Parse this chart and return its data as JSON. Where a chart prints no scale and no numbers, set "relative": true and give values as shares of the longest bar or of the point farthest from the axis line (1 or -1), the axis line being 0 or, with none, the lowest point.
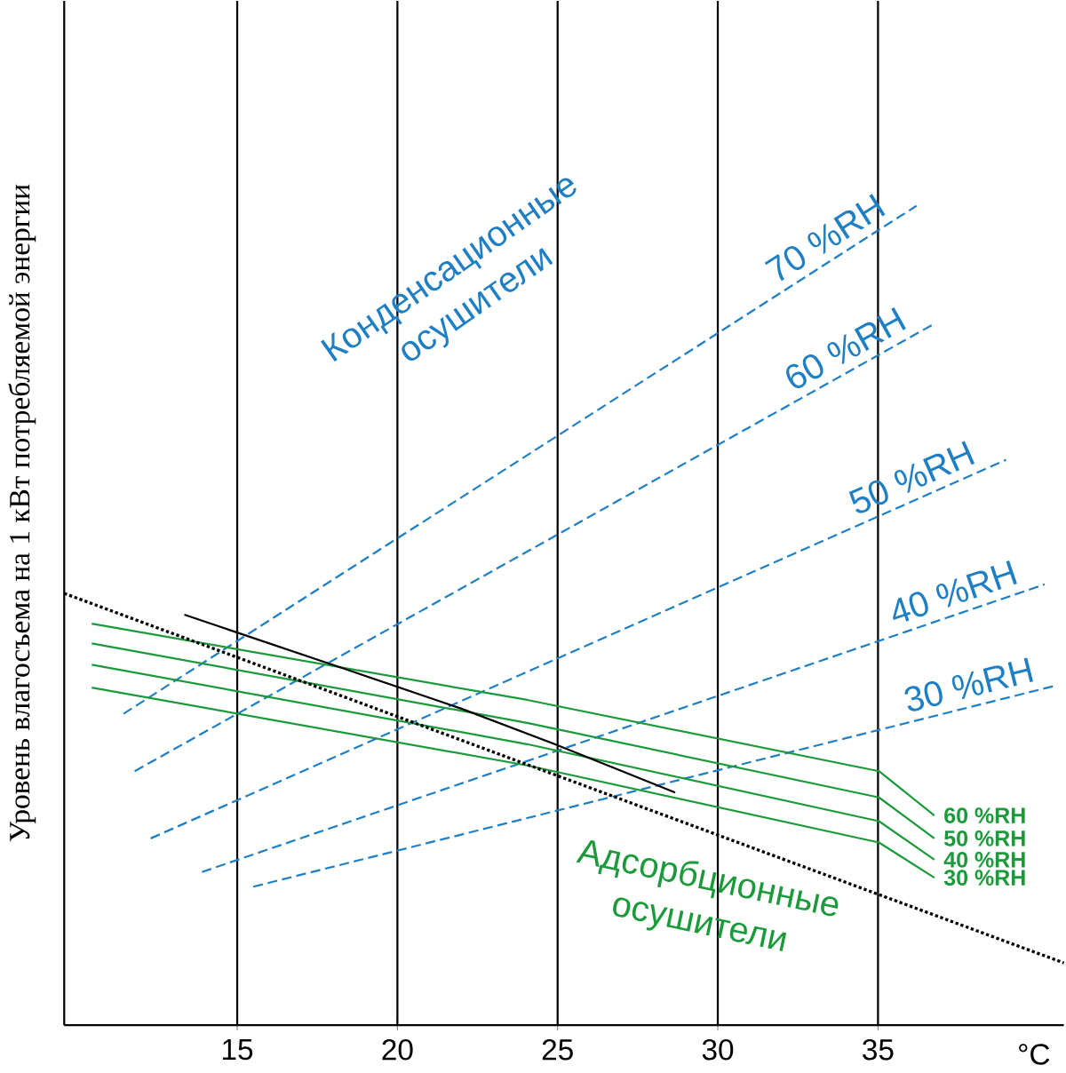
{
  "chart_data": {
    "type": "line",
    "relative": true,
    "xlabel": "°C",
    "ylabel": "Уровень влагосъема на 1 кВт потребляемой энергии",
    "xlim": [
      9.6,
      40.8
    ],
    "xticks": [
      15,
      20,
      25,
      30,
      35
    ],
    "grid": "x",
    "marker": "none",
    "annotations": [
      "Конденсационные осушители",
      "Адсорбционные осушители"
    ],
    "series": [
      {
        "name": "70 %RH",
        "color": "#1f7fc4",
        "line_style": "dashed",
        "x": [
          11.45,
          36.2
        ],
        "values": [
          0.38,
          1.0
        ]
      },
      {
        "name": "60 %RH",
        "color": "#1f7fc4",
        "line_style": "dashed",
        "x": [
          11.8,
          36.8
        ],
        "values": [
          0.31,
          0.857
        ]
      },
      {
        "name": "50 %RH",
        "color": "#1f7fc4",
        "line_style": "dashed",
        "x": [
          12.3,
          39.0
        ],
        "values": [
          0.228,
          0.69
        ]
      },
      {
        "name": "40 %RH",
        "color": "#1f7fc4",
        "line_style": "dashed",
        "x": [
          13.9,
          40.2
        ],
        "values": [
          0.187,
          0.538
        ]
      },
      {
        "name": "30 %RH",
        "color": "#1f7fc4",
        "line_style": "dashed",
        "x": [
          15.5,
          40.5
        ],
        "values": [
          0.169,
          0.414
        ]
      },
      {
        "name": "60 %RH",
        "color": "#1a9a3a",
        "line_style": "solid",
        "x": [
          10.46,
          24.05,
          35.03,
          36.76
        ],
        "values": [
          0.49,
          0.397,
          0.31,
          0.256
        ]
      },
      {
        "name": "50 %RH",
        "color": "#1a9a3a",
        "line_style": "solid",
        "x": [
          10.46,
          24.05,
          35.03,
          36.76
        ],
        "values": [
          0.466,
          0.369,
          0.278,
          0.228
        ]
      },
      {
        "name": "40 %RH",
        "color": "#1a9a3a",
        "line_style": "solid",
        "x": [
          10.46,
          24.05,
          35.03,
          36.76
        ],
        "values": [
          0.44,
          0.343,
          0.249,
          0.202
        ]
      },
      {
        "name": "30 %RH",
        "color": "#1a9a3a",
        "line_style": "solid",
        "x": [
          10.46,
          24.05,
          35.03,
          36.76
        ],
        "values": [
          0.412,
          0.317,
          0.223,
          0.18
        ]
      },
      {
        "color": "#000000",
        "line_style": "dotted",
        "x": [
          9.6,
          40.8
        ],
        "values": [
          0.527,
          0.076
        ]
      },
      {
        "color": "#000000",
        "line_style": "solid",
        "x": [
          13.35,
          18.27,
          22.02,
          24.91,
          28.67
        ],
        "values": [
          0.501,
          0.436,
          0.386,
          0.343,
          0.284
        ]
      }
    ]
  }
}
